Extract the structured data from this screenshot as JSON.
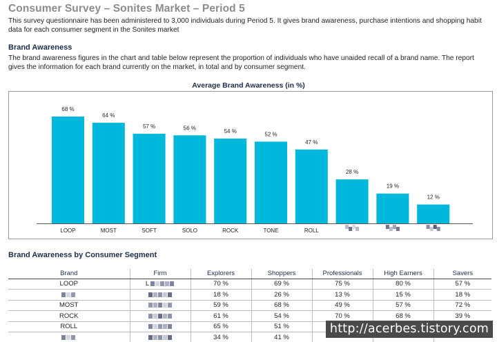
{
  "title": "Consumer Survey – Sonites Market – Period 5",
  "intro": "This survey questionnaire has been administered to 3,000 individuals during Period 5. It gives brand awareness, purchase intentions and shopping habit data for each consumer segment in the Sonites market",
  "brand_awareness": {
    "heading": "Brand Awareness",
    "text": "The brand awareness figures in the chart and table below represent the proportion of individuals who have unaided recall of a brand name. The report gives the information for each brand currently on the market, in total and by consumer segment."
  },
  "chart_data": {
    "type": "bar",
    "title": "Average Brand Awareness (in %)",
    "categories": [
      "LOOP",
      "MOST",
      "SOFT",
      "SOLO",
      "ROCK",
      "TONE",
      "ROLL",
      "",
      "",
      ""
    ],
    "values": [
      68,
      64,
      57,
      56,
      54,
      52,
      47,
      28,
      19,
      12
    ],
    "value_labels": [
      "68 %",
      "64 %",
      "57 %",
      "56 %",
      "54 %",
      "52 %",
      "47 %",
      "28 %",
      "19 %",
      "12 %"
    ],
    "redacted_categories": [
      7,
      8,
      9
    ],
    "ylim": [
      0,
      75
    ],
    "grid": false,
    "bar_color": "#00b8dc",
    "xlabel": "",
    "ylabel": ""
  },
  "segment_table": {
    "heading": "Brand Awareness by Consumer Segment",
    "columns": [
      "Brand",
      "Firm",
      "Explorers",
      "Shoppers",
      "Professionals",
      "High Earners",
      "Savers"
    ],
    "rows": [
      {
        "brand": "LOOP",
        "brand_redacted": false,
        "firm": "L",
        "firm_redacted": true,
        "values": [
          "70 %",
          "69 %",
          "75 %",
          "80 %",
          "57 %"
        ]
      },
      {
        "brand": "",
        "brand_redacted": true,
        "firm": "",
        "firm_redacted": true,
        "values": [
          "18 %",
          "26 %",
          "13 %",
          "15 %",
          "18 %"
        ]
      },
      {
        "brand": "MOST",
        "brand_redacted": false,
        "firm": "",
        "firm_redacted": true,
        "values": [
          "59 %",
          "68 %",
          "49 %",
          "57 %",
          "72 %"
        ]
      },
      {
        "brand": "ROCK",
        "brand_redacted": false,
        "firm": "",
        "firm_redacted": true,
        "values": [
          "61 %",
          "54 %",
          "70 %",
          "68 %",
          "39 %"
        ]
      },
      {
        "brand": "ROLL",
        "brand_redacted": false,
        "firm": "",
        "firm_redacted": true,
        "values": [
          "65 %",
          "51 %",
          "",
          "",
          ""
        ]
      },
      {
        "brand": "",
        "brand_redacted": true,
        "firm": "",
        "firm_redacted": true,
        "values": [
          "34 %",
          "41 %",
          "",
          "",
          ""
        ]
      }
    ]
  },
  "watermark": "http://acerbes.tistory.com",
  "colors": {
    "title_gray": "#8c8c8c",
    "heading_navy": "#1c2d4a",
    "bar": "#00b8dc"
  }
}
